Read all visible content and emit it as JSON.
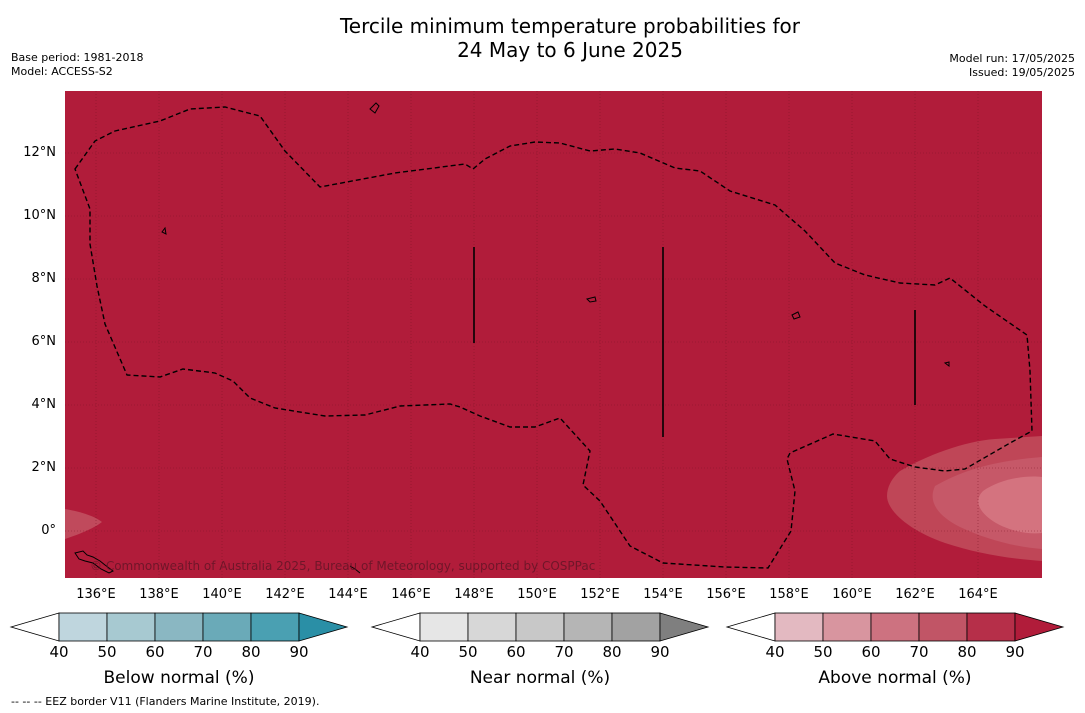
{
  "title": "Tercile minimum temperature probabilities for\n24 May to 6 June 2025",
  "meta_left": [
    "Base period: 1981-2018",
    "Model: ACCESS-S2"
  ],
  "meta_right": [
    "Model run: 17/05/2025",
    "Issued: 19/05/2025"
  ],
  "copyright": "© Commonwealth of Australia 2025, Bureau of Meteorology, supported by COSPPac",
  "footnote": "--  --  -- EEZ border V11 (Flanders Marine Institute, 2019).",
  "map": {
    "lon_range": [
      135,
      166
    ],
    "lat_range": [
      -1.5,
      14
    ],
    "x_ticks": [
      "136°E",
      "138°E",
      "140°E",
      "142°E",
      "144°E",
      "146°E",
      "148°E",
      "150°E",
      "152°E",
      "154°E",
      "156°E",
      "158°E",
      "160°E",
      "162°E",
      "164°E"
    ],
    "y_ticks": [
      "12°N",
      "10°N",
      "8°N",
      "6°N",
      "4°N",
      "2°N",
      "0°"
    ],
    "background_color": "#b11c3a",
    "grid": true
  },
  "colorbars": [
    {
      "label": "Below normal (%)",
      "ticks": [
        "40",
        "50",
        "60",
        "70",
        "80",
        "90"
      ],
      "colors": [
        "#ffffff",
        "#bfd6de",
        "#a7c9d1",
        "#8ab7c2",
        "#6aaab8",
        "#4aa0b2",
        "#2a8fa6"
      ]
    },
    {
      "label": "Near normal (%)",
      "ticks": [
        "40",
        "50",
        "60",
        "70",
        "80",
        "90"
      ],
      "colors": [
        "#ffffff",
        "#e6e6e6",
        "#d7d7d7",
        "#c8c8c8",
        "#b5b5b5",
        "#a2a2a2",
        "#7f7f7f"
      ]
    },
    {
      "label": "Above normal (%)",
      "ticks": [
        "40",
        "50",
        "60",
        "70",
        "80",
        "90"
      ],
      "colors": [
        "#ffffff",
        "#e3b9c1",
        "#d8959f",
        "#cd7280",
        "#c15566",
        "#b62f49",
        "#b11c3a"
      ]
    }
  ]
}
